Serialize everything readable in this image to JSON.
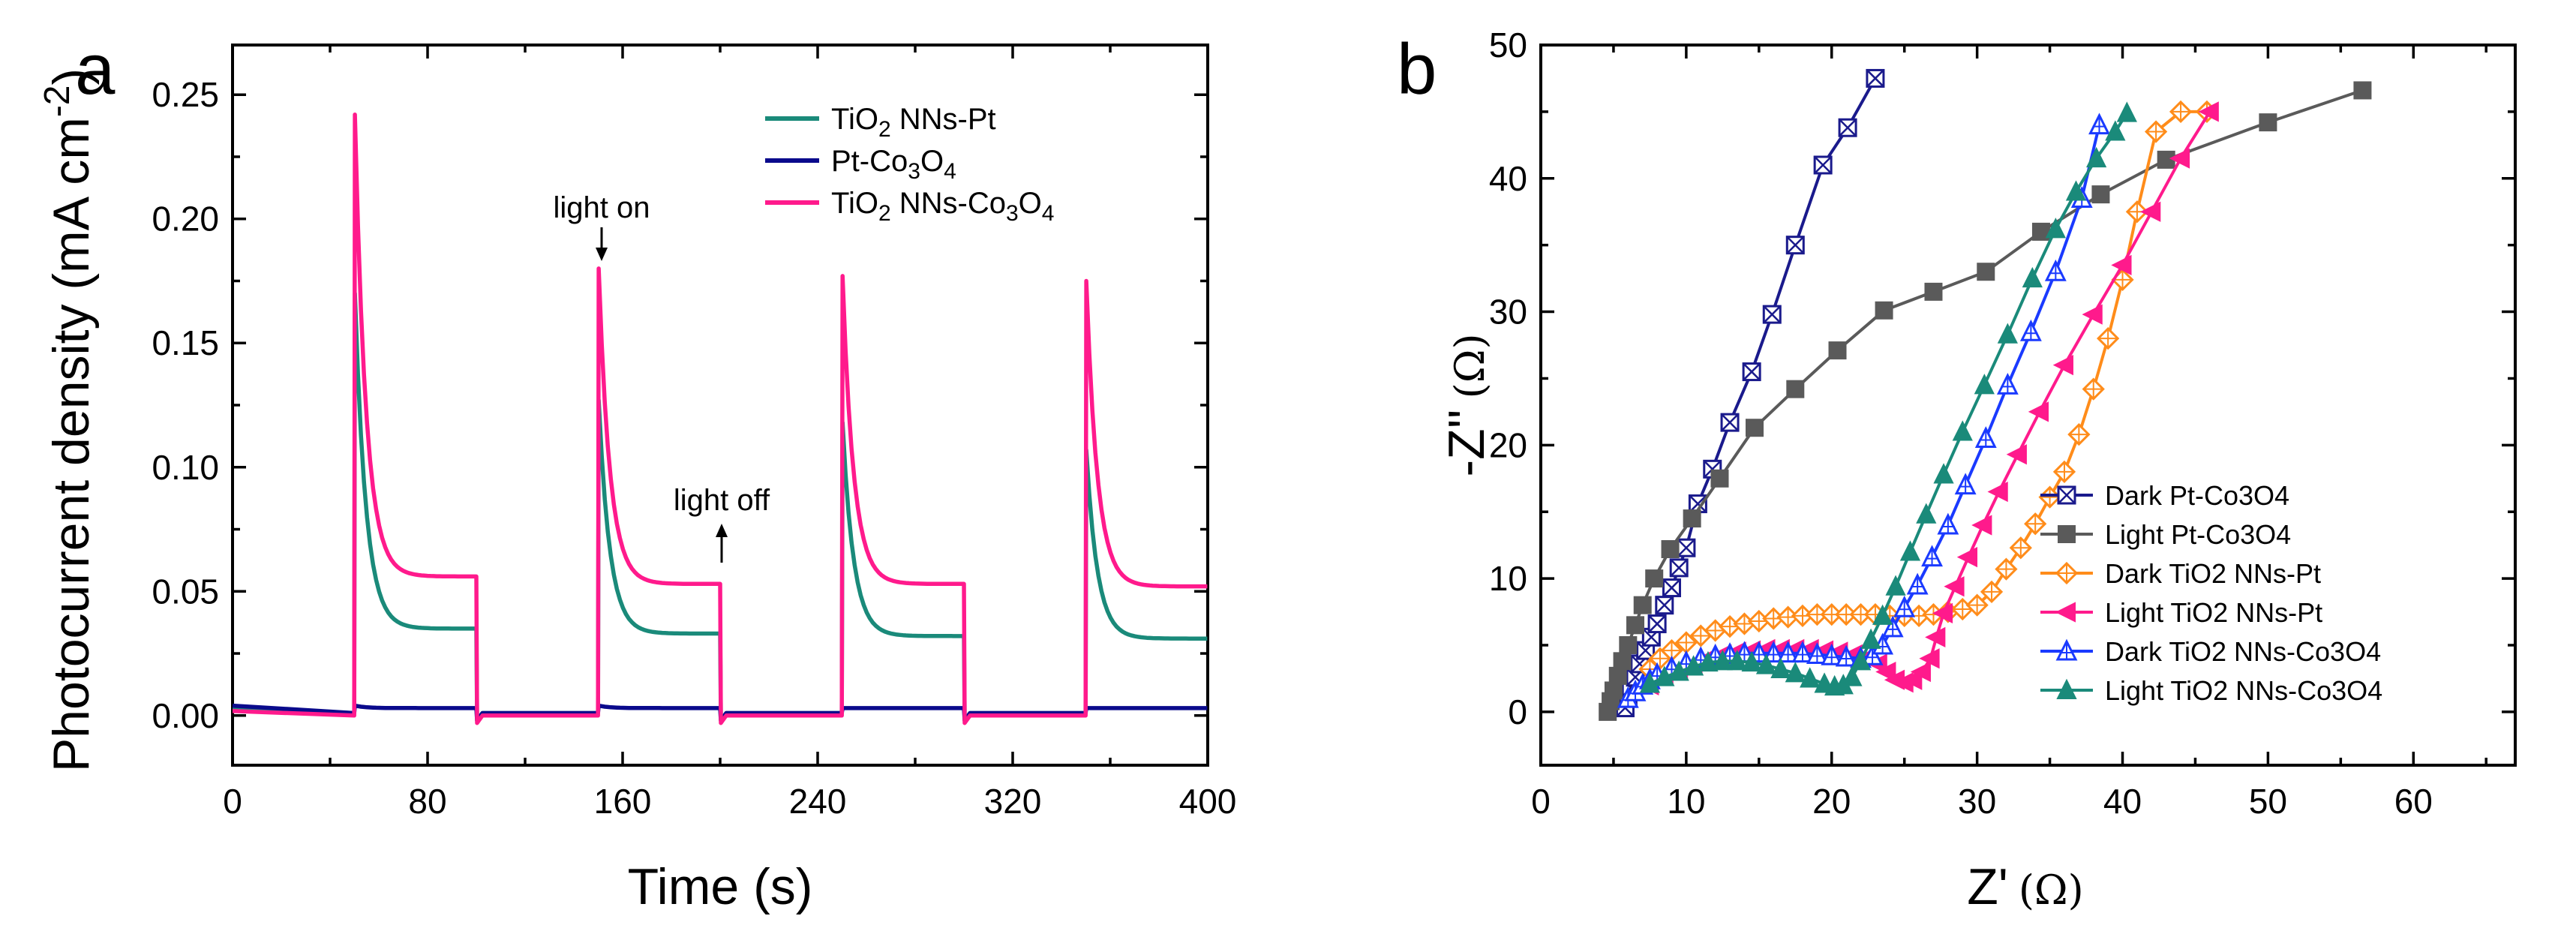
{
  "chart_data": [
    {
      "panel": "a",
      "type": "line",
      "xlabel": "Time (s)",
      "ylabel": "Photocurrent density (mA cm-2)",
      "ylabel_main": "Photocurrent density (mA cm",
      "ylabel_exp": "-2",
      "ylabel_close": ")",
      "xlim": [
        0,
        400
      ],
      "ylim": [
        -0.02,
        0.27
      ],
      "xticks": [
        0,
        80,
        160,
        240,
        320,
        400
      ],
      "yticks": [
        0.0,
        0.05,
        0.1,
        0.15,
        0.2,
        0.25
      ],
      "ytick_labels": [
        "0.00",
        "0.05",
        "0.10",
        "0.15",
        "0.20",
        "0.25"
      ],
      "legend_position": "top-right",
      "annotations": [
        {
          "text": "light on",
          "at": [
            150,
            0.18
          ]
        },
        {
          "text": "light off",
          "at": [
            200,
            0.055
          ]
        }
      ],
      "light_cycles": [
        [
          50,
          100
        ],
        [
          150,
          200
        ],
        [
          250,
          300
        ],
        [
          350,
          400
        ]
      ],
      "series": [
        {
          "name": "TiO2 NNs-Pt",
          "color": "#1a8a7a",
          "baseline": 0.001,
          "peaks": [
            0.17,
            0.127,
            0.118,
            0.107
          ],
          "plateaus": [
            0.035,
            0.033,
            0.032,
            0.031
          ]
        },
        {
          "name": "Pt-Co3O4",
          "color": "#0a0a8c",
          "baseline": 0.001,
          "peaks": [
            0.004,
            0.004,
            0.003,
            0.003
          ],
          "plateaus": [
            0.003,
            0.003,
            0.003,
            0.003
          ]
        },
        {
          "name": "TiO2 NNs-Co3O4",
          "color": "#ff1a8c",
          "baseline": 0.0,
          "peaks": [
            0.242,
            0.18,
            0.177,
            0.175
          ],
          "plateaus": [
            0.056,
            0.053,
            0.053,
            0.052
          ]
        }
      ]
    },
    {
      "panel": "b",
      "type": "scatter",
      "xlabel_main": "Z'",
      "xlabel_unit": "(Ω)",
      "ylabel_main": "-Z''",
      "ylabel_unit": "(Ω)",
      "xlim": [
        0,
        67
      ],
      "ylim": [
        -4,
        50
      ],
      "xticks": [
        0,
        10,
        20,
        30,
        40,
        50,
        60
      ],
      "yticks": [
        0,
        10,
        20,
        30,
        40,
        50
      ],
      "legend_position": "bottom-right",
      "series": [
        {
          "name": "Dark Pt-Co3O4",
          "color": "#1a1a8c",
          "marker": "square-x",
          "x": [
            5.8,
            6.0,
            6.2,
            6.5,
            6.8,
            7.2,
            7.6,
            8.0,
            8.5,
            9.0,
            9.5,
            10.0,
            10.8,
            11.8,
            13.0,
            14.5,
            15.9,
            17.5,
            19.4,
            21.1,
            23.0
          ],
          "y": [
            0.3,
            1.0,
            1.8,
            2.6,
            3.6,
            4.6,
            5.6,
            6.6,
            8.0,
            9.3,
            10.8,
            12.3,
            15.6,
            18.2,
            21.7,
            25.5,
            29.8,
            35.0,
            41.0,
            43.8,
            47.5
          ]
        },
        {
          "name": "Light Pt-Co3O4",
          "color": "#5a5a5a",
          "marker": "square",
          "x": [
            4.6,
            4.8,
            5.0,
            5.3,
            5.6,
            6.0,
            6.5,
            7.0,
            7.8,
            8.9,
            10.4,
            12.3,
            14.7,
            17.5,
            20.4,
            23.6,
            27.0,
            30.6,
            34.4,
            38.5,
            43.0,
            50.0,
            56.5
          ],
          "y": [
            0.0,
            0.8,
            1.6,
            2.7,
            3.8,
            5.0,
            6.5,
            8.0,
            10.0,
            12.2,
            14.5,
            17.5,
            21.3,
            24.2,
            27.1,
            30.1,
            31.5,
            33.0,
            36.0,
            38.8,
            41.4,
            44.2,
            46.6
          ]
        },
        {
          "name": "Dark TiO2 NNs-Pt",
          "color": "#ff8c1a",
          "marker": "diamond-open",
          "x": [
            7.5,
            8.2,
            9.0,
            10.0,
            11.0,
            12.0,
            13.0,
            14.0,
            15.0,
            16.0,
            17.0,
            18.0,
            19.0,
            20.0,
            21.0,
            22.0,
            23.0,
            24.0,
            25.0,
            26.0,
            27.0,
            28.0,
            29.0,
            30.0,
            31.0,
            32.0,
            33.0,
            34.0,
            35.0,
            36.0,
            37.0,
            38.0,
            39.0,
            40.0,
            41.0,
            42.3,
            44.0,
            45.8
          ],
          "y": [
            3.2,
            4.0,
            4.6,
            5.2,
            5.7,
            6.1,
            6.4,
            6.6,
            6.8,
            7.0,
            7.1,
            7.2,
            7.3,
            7.3,
            7.3,
            7.3,
            7.3,
            7.2,
            7.2,
            7.2,
            7.3,
            7.5,
            7.7,
            8.0,
            9.0,
            10.7,
            12.3,
            14.1,
            16.1,
            18.0,
            20.8,
            24.2,
            28.0,
            32.4,
            37.5,
            43.5,
            45.0,
            45.0
          ]
        },
        {
          "name": "Light TiO2 NNs-Pt",
          "color": "#ff1a8c",
          "marker": "triangle-left",
          "x": [
            7.5,
            8.5,
            9.5,
            10.5,
            11.5,
            12.5,
            13.5,
            14.5,
            15.5,
            16.5,
            17.5,
            18.5,
            19.5,
            20.5,
            21.5,
            22.5,
            23.2,
            23.8,
            24.4,
            25.0,
            25.6,
            26.2,
            26.8,
            27.2,
            27.7,
            28.5,
            29.4,
            30.4,
            31.5,
            32.8,
            34.3,
            36.0,
            38.0,
            40.0,
            42.0,
            44.0,
            46.0
          ],
          "y": [
            2.0,
            2.7,
            3.2,
            3.6,
            4.0,
            4.3,
            4.5,
            4.6,
            4.7,
            4.7,
            4.7,
            4.7,
            4.6,
            4.5,
            4.3,
            4.1,
            3.6,
            3.0,
            2.4,
            2.2,
            2.4,
            3.0,
            4.0,
            5.6,
            7.4,
            9.4,
            11.6,
            14.0,
            16.5,
            19.3,
            22.5,
            26.0,
            29.8,
            33.5,
            37.5,
            41.5,
            45.0
          ]
        },
        {
          "name": "Dark TiO2 NNs-Co3O4",
          "color": "#1a3aff",
          "marker": "triangle-up-open",
          "x": [
            6.0,
            6.5,
            7.0,
            7.5,
            8.0,
            9.0,
            10.0,
            11.0,
            12.0,
            13.0,
            14.0,
            15.0,
            16.0,
            17.0,
            18.0,
            19.0,
            20.0,
            21.0,
            22.0,
            22.8,
            23.5,
            24.2,
            25.0,
            25.9,
            26.9,
            28.0,
            29.2,
            30.6,
            32.1,
            33.7,
            35.4,
            37.2,
            38.4
          ],
          "y": [
            1.0,
            1.5,
            2.0,
            2.4,
            2.8,
            3.3,
            3.7,
            4.0,
            4.2,
            4.3,
            4.4,
            4.4,
            4.4,
            4.4,
            4.4,
            4.3,
            4.2,
            4.1,
            4.0,
            4.2,
            5.0,
            6.3,
            7.8,
            9.5,
            11.6,
            14.0,
            17.0,
            20.5,
            24.5,
            28.5,
            33.0,
            38.5,
            44.0
          ]
        },
        {
          "name": "Light TiO2 NNs-Co3O4",
          "color": "#1a8a7a",
          "marker": "triangle-up",
          "x": [
            7.5,
            8.5,
            9.5,
            10.5,
            11.5,
            12.5,
            13.5,
            14.5,
            15.5,
            16.5,
            17.5,
            18.5,
            19.5,
            20.2,
            20.8,
            21.4,
            22.0,
            22.7,
            23.5,
            24.4,
            25.4,
            26.5,
            27.7,
            29.0,
            30.5,
            32.1,
            33.8,
            35.4,
            36.8,
            38.2,
            39.5,
            40.3
          ],
          "y": [
            2.1,
            2.6,
            3.0,
            3.4,
            3.7,
            3.8,
            3.8,
            3.7,
            3.5,
            3.2,
            2.9,
            2.5,
            2.1,
            1.9,
            2.0,
            2.6,
            3.8,
            5.4,
            7.2,
            9.4,
            12.0,
            14.8,
            17.8,
            21.0,
            24.5,
            28.3,
            32.5,
            36.2,
            39.0,
            41.5,
            43.5,
            44.9
          ]
        }
      ]
    }
  ],
  "labels": {
    "panel_a": "a",
    "panel_b": "b",
    "light_on": "light on",
    "light_off": "light off",
    "legend_a": [
      {
        "pre": "TiO",
        "sub": "2",
        "post": " NNs-Pt"
      },
      {
        "pre": "Pt-Co",
        "sub": "3",
        "mid": "O",
        "sub2": "4",
        "post": ""
      },
      {
        "pre": "TiO",
        "sub": "2",
        "post": " NNs-Co",
        "sub3": "3",
        "mid3": "O",
        "sub4": "4"
      }
    ]
  }
}
